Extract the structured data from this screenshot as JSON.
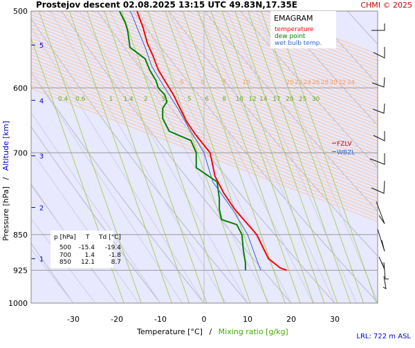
{
  "header": {
    "title": "Prostejov   descent   02.08.2025 13:15 UTC  49.83N,17.35E",
    "credit": "CHMI © 2025"
  },
  "legend": {
    "title": "EMAGRAM",
    "items": [
      {
        "label": "temperature",
        "color": "#ff0000"
      },
      {
        "label": "dew point",
        "color": "#008000"
      },
      {
        "label": "wet bulb temp.",
        "color": "#3366cc"
      }
    ]
  },
  "axes": {
    "y_label_pressure": "Pressure [hPa]",
    "y_label_sep": "/",
    "y_label_altitude": "Altitude [km]",
    "x_label_temp": "Temperature [°C]",
    "x_label_sep": "/",
    "x_label_mixing": "Mixing ratio [g/kg]"
  },
  "footer": {
    "lrl": "LRL: 722 m ASL"
  },
  "levels": {
    "fzlv": "FZLV",
    "wbzl": "WBZL"
  },
  "table": {
    "headers": [
      "p [hPa]",
      "T",
      "Td [°C]"
    ],
    "rows": [
      [
        "500",
        "-15.4",
        "-19.4"
      ],
      [
        "700",
        "1.4",
        "-1.8"
      ],
      [
        "850",
        "12.1",
        "8.7"
      ]
    ]
  },
  "chart_data": {
    "type": "line",
    "x_axis": {
      "label": "Temperature [°C]",
      "range": [
        -40,
        40
      ],
      "ticks": [
        -30,
        -20,
        -10,
        0,
        10,
        20,
        30
      ]
    },
    "y_axis": {
      "label": "Pressure [hPa]",
      "scale": "log",
      "range": [
        1000,
        500
      ],
      "ticks": [
        500,
        600,
        700,
        850,
        925,
        1000
      ]
    },
    "altitude_ticks_km": [
      1,
      2,
      3,
      4,
      5
    ],
    "altitude_km_pressure": {
      "1": 900,
      "2": 797,
      "3": 705,
      "4": 618,
      "5": 542
    },
    "isotherm_labels": [
      "-5",
      "0",
      "5",
      "10",
      "20",
      "22",
      "24",
      "26",
      "28",
      "30",
      "32",
      "34"
    ],
    "isotherm_label_temps": [
      -5,
      0,
      5,
      10,
      20,
      22,
      24,
      26,
      28,
      30,
      32,
      34
    ],
    "mixing_ratio_labels": [
      "0.4",
      "0.6",
      "1",
      "1.4",
      "2",
      "3",
      "5",
      "6",
      "8",
      "10",
      "12",
      "14",
      "17",
      "20",
      "25",
      "30"
    ],
    "mixing_ratio_label_temps": [
      -33,
      -29,
      -22,
      -18,
      -14,
      -10,
      -4,
      0,
      4,
      7.5,
      10.5,
      13,
      16,
      19,
      22,
      25
    ],
    "series": [
      {
        "name": "temperature",
        "color": "#ff0000",
        "points": [
          [
            19,
            925
          ],
          [
            17.5,
            920
          ],
          [
            14.8,
            900
          ],
          [
            12.1,
            850
          ],
          [
            7.0,
            800
          ],
          [
            4.5,
            770
          ],
          [
            2.5,
            740
          ],
          [
            1.4,
            700
          ],
          [
            -2.0,
            670
          ],
          [
            -4.0,
            650
          ],
          [
            -5.5,
            630
          ],
          [
            -7.0,
            610
          ],
          [
            -9.0,
            590
          ],
          [
            -10.5,
            575
          ],
          [
            -11.8,
            555
          ],
          [
            -13.0,
            540
          ],
          [
            -14.0,
            520
          ],
          [
            -15.4,
            500
          ]
        ]
      },
      {
        "name": "dew point",
        "color": "#008000",
        "points": [
          [
            9.5,
            925
          ],
          [
            9.5,
            910
          ],
          [
            9.0,
            880
          ],
          [
            8.7,
            850
          ],
          [
            7.5,
            830
          ],
          [
            4.0,
            820
          ],
          [
            3.5,
            800
          ],
          [
            3.5,
            780
          ],
          [
            3.0,
            750
          ],
          [
            -1.8,
            725
          ],
          [
            -1.8,
            700
          ],
          [
            -3.0,
            680
          ],
          [
            -8.0,
            665
          ],
          [
            -9.5,
            645
          ],
          [
            -9.5,
            630
          ],
          [
            -8.5,
            620
          ],
          [
            -9.0,
            610
          ],
          [
            -10.5,
            600
          ],
          [
            -11.0,
            590
          ],
          [
            -12.5,
            575
          ],
          [
            -13.5,
            560
          ],
          [
            -17.0,
            545
          ],
          [
            -17.5,
            525
          ],
          [
            -18.0,
            515
          ],
          [
            -19.4,
            500
          ]
        ]
      },
      {
        "name": "wet bulb temp.",
        "color": "#3366cc",
        "points": [
          [
            13.0,
            925
          ],
          [
            12.0,
            900
          ],
          [
            10.0,
            850
          ],
          [
            6.5,
            800
          ],
          [
            2.0,
            750
          ],
          [
            0.0,
            700
          ],
          [
            -3.5,
            660
          ],
          [
            -6.0,
            630
          ],
          [
            -8.0,
            610
          ],
          [
            -10.0,
            590
          ],
          [
            -12.0,
            570
          ],
          [
            -13.5,
            545
          ],
          [
            -15.0,
            525
          ],
          [
            -16.5,
            505
          ],
          [
            -17.0,
            500
          ]
        ]
      }
    ],
    "levels": [
      {
        "name": "FZLV",
        "pressure": 684,
        "color": "#cc0000"
      },
      {
        "name": "WBZL",
        "pressure": 698,
        "color": "#3366cc"
      }
    ],
    "wind_barbs_pressure": [
      500,
      540,
      580,
      620,
      660,
      700,
      750,
      800,
      850,
      880,
      900,
      925
    ]
  }
}
